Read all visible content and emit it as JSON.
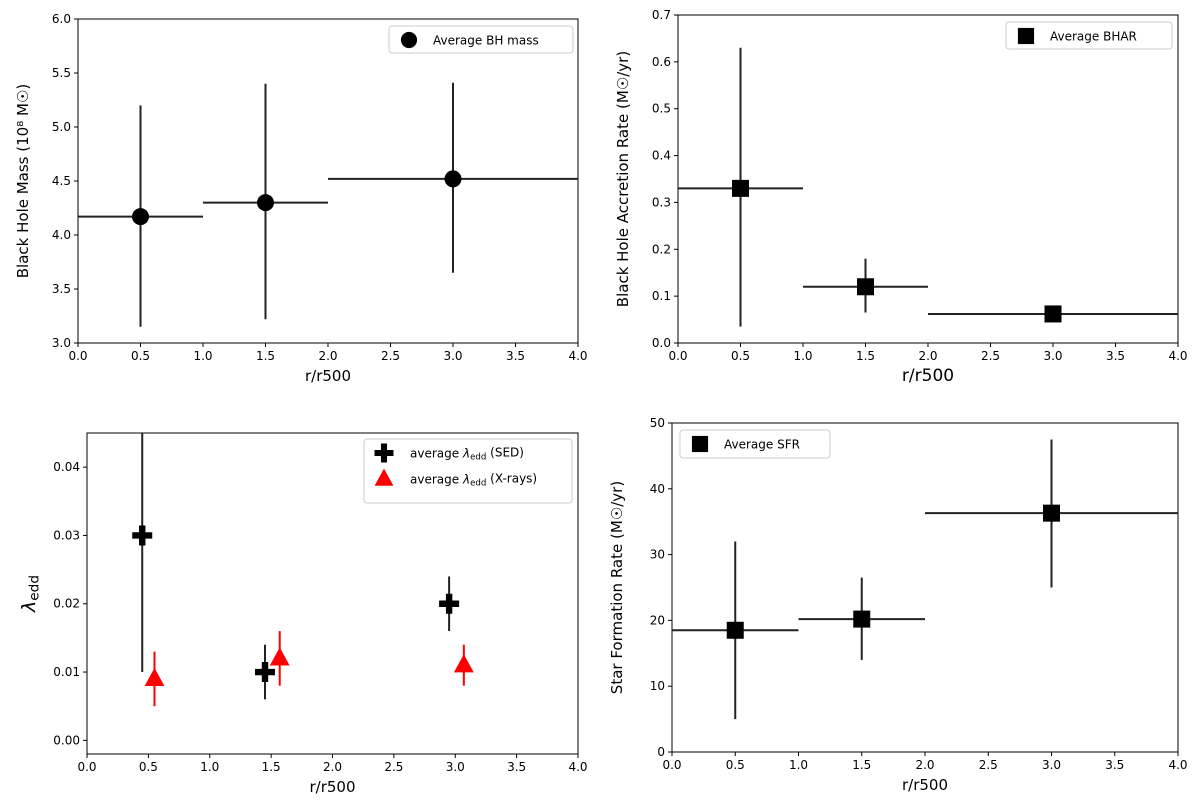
{
  "colors": {
    "black": "#000000",
    "red": "#ff0000",
    "errbar": "#222222"
  },
  "chart_data": [
    {
      "id": "bh-mass",
      "type": "scatter",
      "xlabel": "r/r500",
      "ylabel": "Black Hole Mass (10⁸ M☉)",
      "xlim": [
        0,
        4
      ],
      "ylim": [
        3.0,
        6.0
      ],
      "xticks": [
        "0.0",
        "0.5",
        "1.0",
        "1.5",
        "2.0",
        "2.5",
        "3.0",
        "3.5",
        "4.0"
      ],
      "yticks": [
        "3.0",
        "3.5",
        "4.0",
        "4.5",
        "5.0",
        "5.5",
        "6.0"
      ],
      "grid": false,
      "legend_placement": "top-right",
      "series": [
        {
          "name": "Average BH mass",
          "marker": "circle",
          "color": "#000000",
          "points": [
            {
              "x": 0.5,
              "y": 4.17,
              "xlo": 0.0,
              "xhi": 1.0,
              "ylo": 3.15,
              "yhi": 5.2
            },
            {
              "x": 1.5,
              "y": 4.3,
              "xlo": 1.0,
              "xhi": 2.0,
              "ylo": 3.22,
              "yhi": 5.4
            },
            {
              "x": 3.0,
              "y": 4.52,
              "xlo": 2.0,
              "xhi": 4.0,
              "ylo": 3.65,
              "yhi": 5.41
            }
          ]
        }
      ]
    },
    {
      "id": "bhar",
      "type": "scatter",
      "xlabel": "r/r500",
      "ylabel": "Black Hole Accretion Rate (M☉/yr)",
      "xlim": [
        0,
        4
      ],
      "ylim": [
        0.0,
        0.7
      ],
      "xticks": [
        "0.0",
        "0.5",
        "1.0",
        "1.5",
        "2.0",
        "2.5",
        "3.0",
        "3.5",
        "4.0"
      ],
      "yticks": [
        "0.0",
        "0.1",
        "0.2",
        "0.3",
        "0.4",
        "0.5",
        "0.6",
        "0.7"
      ],
      "grid": false,
      "legend_placement": "top-right",
      "series": [
        {
          "name": "Average BHAR",
          "marker": "square",
          "color": "#000000",
          "points": [
            {
              "x": 0.5,
              "y": 0.33,
              "xlo": 0.0,
              "xhi": 1.0,
              "ylo": 0.035,
              "yhi": 0.63
            },
            {
              "x": 1.5,
              "y": 0.12,
              "xlo": 1.0,
              "xhi": 2.0,
              "ylo": 0.065,
              "yhi": 0.18
            },
            {
              "x": 3.0,
              "y": 0.062,
              "xlo": 2.0,
              "xhi": 4.0,
              "ylo": 0.062,
              "yhi": 0.062
            }
          ]
        }
      ]
    },
    {
      "id": "lambda-edd",
      "type": "scatter",
      "xlabel": "r/r500",
      "ylabel": "λedd",
      "xlim": [
        0,
        4
      ],
      "ylim": [
        -0.002,
        0.045
      ],
      "xticks": [
        "0.0",
        "0.5",
        "1.0",
        "1.5",
        "2.0",
        "2.5",
        "3.0",
        "3.5",
        "4.0"
      ],
      "yticks": [
        "0.00",
        "0.01",
        "0.02",
        "0.03",
        "0.04"
      ],
      "ytick_values": [
        0.0,
        0.01,
        0.02,
        0.03,
        0.04
      ],
      "grid": false,
      "legend_placement": "top-right",
      "series": [
        {
          "name": "average λedd (SED)",
          "marker": "plus",
          "color": "#000000",
          "points": [
            {
              "x": 0.45,
              "y": 0.03,
              "ylo": 0.01,
              "yhi": 0.045
            },
            {
              "x": 1.45,
              "y": 0.01,
              "ylo": 0.006,
              "yhi": 0.014
            },
            {
              "x": 2.95,
              "y": 0.02,
              "ylo": 0.016,
              "yhi": 0.024
            }
          ]
        },
        {
          "name": "average λedd (X-rays)",
          "marker": "triangle",
          "color": "#ff0000",
          "points": [
            {
              "x": 0.55,
              "y": 0.009,
              "ylo": 0.005,
              "yhi": 0.013
            },
            {
              "x": 1.57,
              "y": 0.012,
              "ylo": 0.008,
              "yhi": 0.016
            },
            {
              "x": 3.07,
              "y": 0.011,
              "ylo": 0.008,
              "yhi": 0.014
            }
          ]
        }
      ]
    },
    {
      "id": "sfr",
      "type": "scatter",
      "xlabel": "r/r500",
      "ylabel": "Star Formation Rate (M☉/yr)",
      "xlim": [
        0,
        4
      ],
      "ylim": [
        0,
        50
      ],
      "xticks": [
        "0.0",
        "0.5",
        "1.0",
        "1.5",
        "2.0",
        "2.5",
        "3.0",
        "3.5",
        "4.0"
      ],
      "yticks": [
        "0",
        "10",
        "20",
        "30",
        "40",
        "50"
      ],
      "grid": false,
      "legend_placement": "top-left",
      "series": [
        {
          "name": "Average SFR",
          "marker": "square",
          "color": "#000000",
          "points": [
            {
              "x": 0.5,
              "y": 18.5,
              "xlo": 0.0,
              "xhi": 1.0,
              "ylo": 5.0,
              "yhi": 32.0
            },
            {
              "x": 1.5,
              "y": 20.2,
              "xlo": 1.0,
              "xhi": 2.0,
              "ylo": 14.0,
              "yhi": 26.5
            },
            {
              "x": 3.0,
              "y": 36.3,
              "xlo": 2.0,
              "xhi": 4.0,
              "ylo": 25.0,
              "yhi": 47.5
            }
          ]
        }
      ]
    }
  ]
}
